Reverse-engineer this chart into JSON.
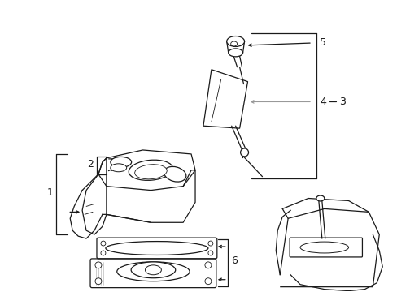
{
  "bg_color": "#ffffff",
  "line_color": "#1a1a1a",
  "gray_color": "#999999",
  "fig_width": 4.89,
  "fig_height": 3.6,
  "dpi": 100
}
